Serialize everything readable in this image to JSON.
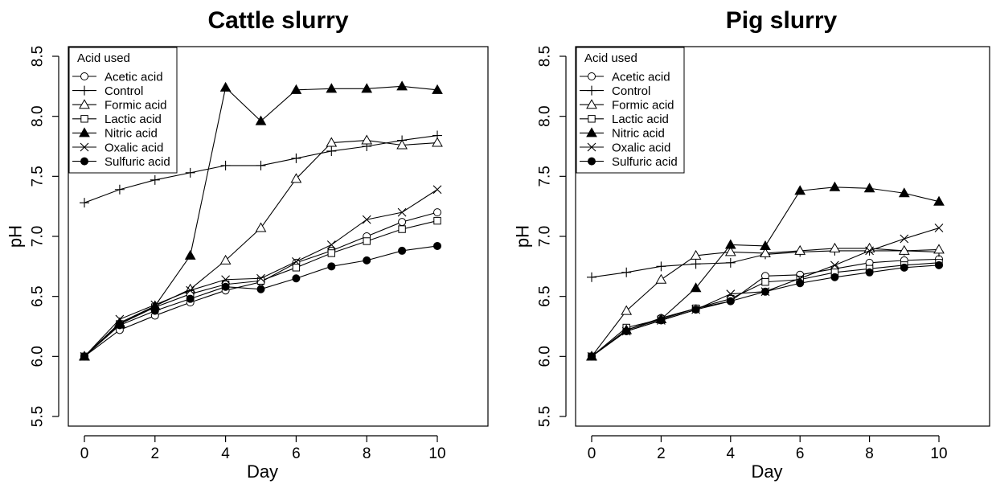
{
  "chart_data": [
    {
      "type": "line",
      "title": "Cattle slurry",
      "xlabel": "Day",
      "ylabel": "pH",
      "xlim": [
        0,
        11
      ],
      "ylim": [
        5.5,
        8.5
      ],
      "xticks": [
        0,
        2,
        4,
        6,
        8,
        10
      ],
      "yticks": [
        5.5,
        6.0,
        6.5,
        7.0,
        7.5,
        8.0,
        8.5
      ],
      "xtick_labels": [
        "0",
        "2",
        "4",
        "6",
        "8",
        "10"
      ],
      "ytick_labels": [
        "5.5",
        "6.0",
        "6.5",
        "7.0",
        "7.5",
        "8.0",
        "8.5"
      ],
      "grid": false,
      "legend": {
        "title": "Acid used",
        "position": "top-left"
      },
      "x": [
        0,
        1,
        2,
        3,
        4,
        5,
        6,
        7,
        8,
        9,
        10
      ],
      "series": [
        {
          "name": "Acetic acid",
          "marker": "circle-open",
          "values": [
            6.0,
            6.22,
            6.34,
            6.45,
            6.55,
            6.62,
            6.78,
            6.88,
            7.0,
            7.12,
            7.2
          ]
        },
        {
          "name": "Control",
          "marker": "plus",
          "values": [
            7.28,
            7.39,
            7.47,
            7.53,
            7.59,
            7.59,
            7.65,
            7.71,
            7.75,
            7.8,
            7.84
          ]
        },
        {
          "name": "Formic acid",
          "marker": "triangle-open",
          "values": [
            6.0,
            6.28,
            6.42,
            6.56,
            6.8,
            7.07,
            7.48,
            7.78,
            7.8,
            7.76,
            7.78
          ]
        },
        {
          "name": "Lactic acid",
          "marker": "square-open",
          "values": [
            6.0,
            6.27,
            6.41,
            6.52,
            6.6,
            6.63,
            6.74,
            6.86,
            6.96,
            7.06,
            7.13
          ]
        },
        {
          "name": "Nitric acid",
          "marker": "triangle-filled",
          "values": [
            6.0,
            6.27,
            6.42,
            6.84,
            8.24,
            7.96,
            8.22,
            8.23,
            8.23,
            8.25,
            8.22
          ]
        },
        {
          "name": "Oxalic acid",
          "marker": "cross",
          "values": [
            6.0,
            6.31,
            6.43,
            6.55,
            6.64,
            6.65,
            6.79,
            6.93,
            7.14,
            7.2,
            7.39
          ]
        },
        {
          "name": "Sulfuric acid",
          "marker": "circle-filled",
          "values": [
            6.0,
            6.26,
            6.38,
            6.48,
            6.58,
            6.56,
            6.65,
            6.75,
            6.8,
            6.88,
            6.92
          ]
        }
      ]
    },
    {
      "type": "line",
      "title": "Pig slurry",
      "xlabel": "Day",
      "ylabel": "pH",
      "xlim": [
        0,
        11
      ],
      "ylim": [
        5.5,
        8.5
      ],
      "xticks": [
        0,
        2,
        4,
        6,
        8,
        10
      ],
      "yticks": [
        5.5,
        6.0,
        6.5,
        7.0,
        7.5,
        8.0,
        8.5
      ],
      "xtick_labels": [
        "0",
        "2",
        "4",
        "6",
        "8",
        "10"
      ],
      "ytick_labels": [
        "5.5",
        "6.0",
        "6.5",
        "7.0",
        "7.5",
        "8.0",
        "8.5"
      ],
      "grid": false,
      "legend": {
        "title": "Acid used",
        "position": "top-left"
      },
      "x": [
        0,
        1,
        2,
        3,
        4,
        5,
        6,
        7,
        8,
        9,
        10
      ],
      "series": [
        {
          "name": "Acetic acid",
          "marker": "circle-open",
          "values": [
            6.0,
            6.22,
            6.32,
            6.4,
            6.46,
            6.67,
            6.68,
            6.73,
            6.78,
            6.8,
            6.81
          ]
        },
        {
          "name": "Control",
          "marker": "plus",
          "values": [
            6.66,
            6.7,
            6.75,
            6.77,
            6.78,
            6.85,
            6.87,
            6.88,
            6.88,
            6.88,
            6.87
          ]
        },
        {
          "name": "Formic acid",
          "marker": "triangle-open",
          "values": [
            6.0,
            6.38,
            6.64,
            6.84,
            6.87,
            6.86,
            6.88,
            6.9,
            6.9,
            6.88,
            6.89
          ]
        },
        {
          "name": "Lactic acid",
          "marker": "square-open",
          "values": [
            6.0,
            6.24,
            6.31,
            6.4,
            6.48,
            6.62,
            6.64,
            6.7,
            6.73,
            6.76,
            6.78
          ]
        },
        {
          "name": "Nitric acid",
          "marker": "triangle-filled",
          "values": [
            6.0,
            6.22,
            6.31,
            6.57,
            6.93,
            6.92,
            7.38,
            7.41,
            7.4,
            7.36,
            7.29
          ]
        },
        {
          "name": "Oxalic acid",
          "marker": "cross",
          "values": [
            6.0,
            6.21,
            6.3,
            6.39,
            6.52,
            6.54,
            6.65,
            6.76,
            6.88,
            6.98,
            7.07
          ]
        },
        {
          "name": "Sulfuric acid",
          "marker": "circle-filled",
          "values": [
            6.0,
            6.21,
            6.3,
            6.39,
            6.46,
            6.54,
            6.61,
            6.66,
            6.7,
            6.74,
            6.76
          ]
        }
      ]
    }
  ]
}
